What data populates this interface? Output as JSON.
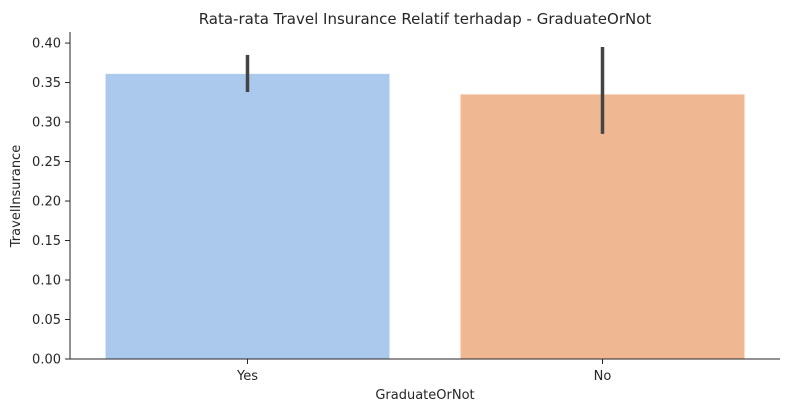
{
  "chart_data": {
    "type": "bar",
    "title": "Rata-rata Travel Insurance Relatif terhadap - GraduateOrNot",
    "xlabel": "GraduateOrNot",
    "ylabel": "TravelInsurance",
    "categories": [
      "Yes",
      "No"
    ],
    "values": [
      0.361,
      0.335
    ],
    "error_bars": [
      {
        "low": 0.338,
        "high": 0.385
      },
      {
        "low": 0.285,
        "high": 0.395
      }
    ],
    "colors": [
      "#abc9ed",
      "#f0b892"
    ],
    "error_bar_color": "#444444",
    "ylim": [
      0,
      0.414
    ],
    "yticks": [
      "0.00",
      "0.05",
      "0.10",
      "0.15",
      "0.20",
      "0.25",
      "0.30",
      "0.35",
      "0.40"
    ],
    "grid": false,
    "legend": "none"
  }
}
